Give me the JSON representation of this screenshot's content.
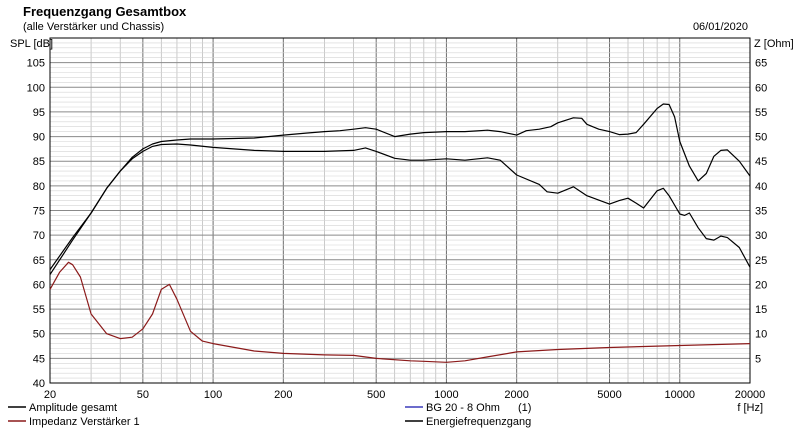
{
  "chart_data": {
    "type": "line",
    "title": "Frequenzgang Gesamtbox",
    "subtitle": "(alle Verstärker und Chassis)",
    "date": "06/01/2020",
    "ylabel_left": "SPL [dB]",
    "ylabel_right": "Z [Ohm]",
    "xlabel": "f [Hz]",
    "x_scale": "log",
    "xlim": [
      20,
      20000
    ],
    "ylim_left": [
      40,
      110
    ],
    "ylim_right": [
      0,
      70
    ],
    "x_ticks": [
      20,
      50,
      100,
      200,
      500,
      1000,
      2000,
      5000,
      10000,
      20000
    ],
    "x_tick_labels": [
      "20",
      "50",
      "100",
      "200",
      "500",
      "1000",
      "2000",
      "5000",
      "10000",
      "20000"
    ],
    "y_ticks_left": [
      "40",
      "45",
      "50",
      "55",
      "60",
      "65",
      "70",
      "75",
      "80",
      "85",
      "90",
      "95",
      "100",
      "105"
    ],
    "y_ticks_right": [
      "5",
      "10",
      "15",
      "20",
      "25",
      "30",
      "35",
      "40",
      "45",
      "50",
      "55",
      "60",
      "65"
    ],
    "grid": true,
    "series": [
      {
        "name": "Amplitude gesamt",
        "color": "#000000",
        "axis": "left",
        "x": [
          20,
          25,
          30,
          35,
          40,
          45,
          50,
          55,
          60,
          70,
          80,
          100,
          150,
          200,
          300,
          400,
          450,
          500,
          600,
          700,
          800,
          1000,
          1200,
          1500,
          1700,
          2000,
          2500,
          2700,
          3000,
          3500,
          4000,
          5000,
          5500,
          6000,
          6500,
          7000,
          8000,
          8500,
          9000,
          10000,
          10500,
          11000,
          12000,
          13000,
          14000,
          15000,
          16000,
          18000,
          20000
        ],
        "values": [
          62,
          69,
          74.5,
          79.5,
          83,
          85.5,
          87,
          88,
          88.4,
          88.5,
          88.3,
          87.8,
          87.2,
          87,
          87,
          87.2,
          87.7,
          87,
          85.6,
          85.2,
          85.2,
          85.5,
          85.2,
          85.7,
          85.2,
          82.2,
          80.3,
          78.8,
          78.5,
          79.8,
          78,
          76.3,
          77,
          77.5,
          76.5,
          75.5,
          79,
          79.5,
          78,
          74.3,
          74,
          74.5,
          71.5,
          69.3,
          69,
          69.8,
          69.5,
          67.5,
          63.5
        ]
      },
      {
        "name": "Impedanz Verstärker 1",
        "color": "#8b1a1a",
        "axis": "right",
        "x": [
          20,
          22,
          24,
          25,
          27,
          30,
          35,
          40,
          45,
          50,
          55,
          60,
          65,
          70,
          80,
          90,
          100,
          150,
          200,
          300,
          400,
          500,
          700,
          800,
          1000,
          1200,
          1500,
          2000,
          3000,
          5000,
          10000,
          20000
        ],
        "values": [
          19,
          22.5,
          24.5,
          24,
          21.5,
          14,
          10,
          9,
          9.3,
          11,
          14,
          19,
          20,
          17,
          10.5,
          8.5,
          8,
          6.5,
          6,
          5.7,
          5.6,
          5,
          4.5,
          4.4,
          4.2,
          4.5,
          5.3,
          6.3,
          6.8,
          7.2,
          7.6,
          8
        ]
      },
      {
        "name": "Energiefrequenzgang",
        "color": "#000000",
        "axis": "left",
        "x": [
          20,
          25,
          30,
          35,
          40,
          45,
          50,
          55,
          60,
          70,
          80,
          100,
          150,
          200,
          250,
          300,
          350,
          400,
          450,
          500,
          600,
          700,
          800,
          1000,
          1200,
          1500,
          1700,
          2000,
          2200,
          2500,
          2800,
          3000,
          3500,
          3800,
          4000,
          4500,
          5000,
          5500,
          6000,
          6500,
          7000,
          8000,
          8500,
          9000,
          9500,
          10000,
          11000,
          12000,
          13000,
          14000,
          15000,
          16000,
          18000,
          20000
        ],
        "values": [
          63,
          69.5,
          74.5,
          79.5,
          83,
          85.8,
          87.5,
          88.5,
          89,
          89.3,
          89.5,
          89.5,
          89.7,
          90.3,
          90.7,
          91,
          91.2,
          91.5,
          91.8,
          91.5,
          90,
          90.5,
          90.8,
          91,
          91,
          91.3,
          91,
          90.3,
          91.2,
          91.5,
          92,
          92.8,
          93.8,
          93.7,
          92.5,
          91.5,
          91,
          90.4,
          90.5,
          90.8,
          92.5,
          95.7,
          96.6,
          96.5,
          94,
          89,
          84,
          81,
          82.5,
          86,
          87.2,
          87.3,
          85,
          82
        ]
      },
      {
        "name": "BG 20 - 8 Ohm",
        "color": "#3b3bbb",
        "axis": "left",
        "x": [],
        "values": []
      }
    ],
    "legend": {
      "placement": "bottom",
      "bg_note": "(1)"
    }
  }
}
